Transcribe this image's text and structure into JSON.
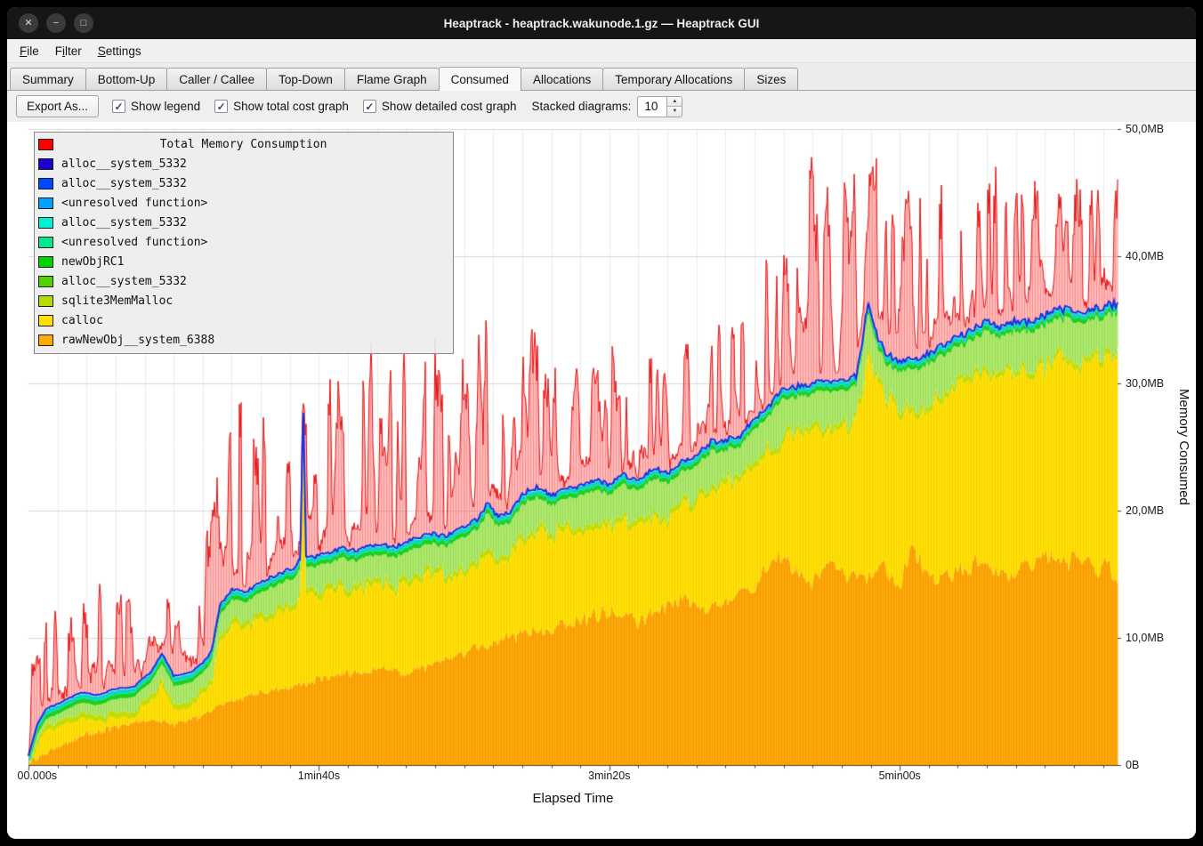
{
  "window": {
    "title": "Heaptrack - heaptrack.wakunode.1.gz — Heaptrack GUI",
    "controls": {
      "close": "✕",
      "minimize": "−",
      "maximize": "□"
    }
  },
  "menu": {
    "items": [
      {
        "label": "File",
        "mnemonic": "F"
      },
      {
        "label": "Filter",
        "mnemonic": "i"
      },
      {
        "label": "Settings",
        "mnemonic": "S"
      }
    ]
  },
  "tabs": [
    {
      "label": "Summary",
      "active": false
    },
    {
      "label": "Bottom-Up",
      "active": false
    },
    {
      "label": "Caller / Callee",
      "active": false
    },
    {
      "label": "Top-Down",
      "active": false
    },
    {
      "label": "Flame Graph",
      "active": false
    },
    {
      "label": "Consumed",
      "active": true
    },
    {
      "label": "Allocations",
      "active": false
    },
    {
      "label": "Temporary Allocations",
      "active": false
    },
    {
      "label": "Sizes",
      "active": false
    }
  ],
  "toolbar": {
    "export_label": "Export As...",
    "checkboxes": [
      {
        "label": "Show legend",
        "checked": true
      },
      {
        "label": "Show total cost graph",
        "checked": true
      },
      {
        "label": "Show detailed cost graph",
        "checked": true
      }
    ],
    "stacked_label": "Stacked diagrams:",
    "stacked_value": "10"
  },
  "icons": {
    "check": "✓",
    "spin_up": "▲",
    "spin_down": "▼"
  },
  "chart_data": {
    "type": "area",
    "stacked": true,
    "title": "Total Memory Consumption",
    "xlabel": "Elapsed Time",
    "ylabel": "Memory Consumed",
    "xlim": [
      0,
      375
    ],
    "ylim_mb": [
      0,
      50
    ],
    "x_ticks": [
      {
        "t": 0,
        "label": "00.000s"
      },
      {
        "t": 100,
        "label": "1min40s"
      },
      {
        "t": 200,
        "label": "3min20s"
      },
      {
        "t": 300,
        "label": "5min00s"
      }
    ],
    "y_ticks": [
      {
        "mb": 0,
        "label": "0B"
      },
      {
        "mb": 10,
        "label": "10,0MB"
      },
      {
        "mb": 20,
        "label": "20,0MB"
      },
      {
        "mb": 30,
        "label": "30,0MB"
      },
      {
        "mb": 40,
        "label": "40,0MB"
      },
      {
        "mb": 50,
        "label": "50,0MB"
      }
    ],
    "legend": [
      {
        "label": "Total Memory Consumption",
        "color": "#ff0000",
        "is_title": true
      },
      {
        "label": "alloc__system_5332",
        "color": "#1a00d2"
      },
      {
        "label": "alloc__system_5332",
        "color": "#0048ff"
      },
      {
        "label": "<unresolved function>",
        "color": "#00a2ff"
      },
      {
        "label": "alloc__system_5332",
        "color": "#00f0d2"
      },
      {
        "label": "<unresolved function>",
        "color": "#00e88a"
      },
      {
        "label": "newObjRC1",
        "color": "#00d400"
      },
      {
        "label": "alloc__system_5332",
        "color": "#52d200"
      },
      {
        "label": "sqlite3MemMalloc",
        "color": "#b4dc00"
      },
      {
        "label": "calloc",
        "color": "#ffe000"
      },
      {
        "label": "rawNewObj__system_6388",
        "color": "#ffaa00"
      }
    ],
    "band_colors": {
      "orange": "#ffa808",
      "yellow": "#ffdf05",
      "yellow_green": "#c6dc00",
      "pale_green": "#aee86e",
      "green": "#1ecf1e",
      "cyan": "#00d9c9",
      "blue": "#1c2fe0",
      "red": "#e51212",
      "red_fill": "rgba(255,45,45,0.33)"
    },
    "series_keyframes": {
      "solid_top_mb": [
        [
          0,
          0.7
        ],
        [
          3,
          3.2
        ],
        [
          6,
          4.4
        ],
        [
          12,
          5.0
        ],
        [
          18,
          5.7
        ],
        [
          24,
          5.5
        ],
        [
          30,
          6.0
        ],
        [
          36,
          6.1
        ],
        [
          42,
          7.3
        ],
        [
          46,
          8.8
        ],
        [
          50,
          7.0
        ],
        [
          56,
          7.3
        ],
        [
          60,
          8.0
        ],
        [
          63,
          8.9
        ],
        [
          66,
          12.6
        ],
        [
          70,
          13.8
        ],
        [
          75,
          13.6
        ],
        [
          80,
          14.4
        ],
        [
          86,
          15.0
        ],
        [
          92,
          15.6
        ],
        [
          93.6,
          16.2
        ],
        [
          94.6,
          28.5
        ],
        [
          95.6,
          16.2
        ],
        [
          102,
          16.6
        ],
        [
          108,
          17.0
        ],
        [
          114,
          16.9
        ],
        [
          120,
          17.4
        ],
        [
          126,
          17.1
        ],
        [
          132,
          17.8
        ],
        [
          138,
          18.2
        ],
        [
          144,
          18.0
        ],
        [
          150,
          18.8
        ],
        [
          155,
          19.4
        ],
        [
          158,
          20.6
        ],
        [
          161,
          19.6
        ],
        [
          166,
          19.9
        ],
        [
          170,
          21.3
        ],
        [
          175,
          21.9
        ],
        [
          180,
          21.2
        ],
        [
          185,
          21.6
        ],
        [
          190,
          21.9
        ],
        [
          195,
          22.4
        ],
        [
          200,
          22.1
        ],
        [
          205,
          22.8
        ],
        [
          210,
          22.4
        ],
        [
          215,
          23.3
        ],
        [
          220,
          23.0
        ],
        [
          225,
          23.8
        ],
        [
          230,
          24.3
        ],
        [
          235,
          25.4
        ],
        [
          240,
          25.6
        ],
        [
          245,
          25.9
        ],
        [
          250,
          27.2
        ],
        [
          255,
          28.3
        ],
        [
          260,
          29.6
        ],
        [
          265,
          29.8
        ],
        [
          270,
          30.0
        ],
        [
          275,
          30.3
        ],
        [
          280,
          30.1
        ],
        [
          285,
          30.6
        ],
        [
          287,
          33.0
        ],
        [
          289,
          36.4
        ],
        [
          291,
          35.0
        ],
        [
          293,
          33.2
        ],
        [
          296,
          32.2
        ],
        [
          300,
          31.7
        ],
        [
          305,
          31.9
        ],
        [
          310,
          32.4
        ],
        [
          315,
          33.0
        ],
        [
          320,
          33.6
        ],
        [
          325,
          34.2
        ],
        [
          330,
          34.9
        ],
        [
          335,
          34.4
        ],
        [
          340,
          35.0
        ],
        [
          345,
          34.8
        ],
        [
          350,
          35.3
        ],
        [
          355,
          35.9
        ],
        [
          360,
          35.5
        ],
        [
          365,
          35.8
        ],
        [
          370,
          36.0
        ],
        [
          375,
          36.3
        ]
      ],
      "orange_top_mb": [
        [
          0,
          0.2
        ],
        [
          6,
          0.9
        ],
        [
          12,
          1.6
        ],
        [
          20,
          2.4
        ],
        [
          28,
          2.9
        ],
        [
          36,
          3.3
        ],
        [
          44,
          3.6
        ],
        [
          50,
          3.2
        ],
        [
          58,
          3.7
        ],
        [
          66,
          4.8
        ],
        [
          74,
          5.3
        ],
        [
          82,
          5.7
        ],
        [
          90,
          6.1
        ],
        [
          98,
          6.6
        ],
        [
          106,
          7.0
        ],
        [
          114,
          7.3
        ],
        [
          122,
          7.6
        ],
        [
          130,
          7.1
        ],
        [
          138,
          7.9
        ],
        [
          146,
          8.4
        ],
        [
          154,
          9.2
        ],
        [
          162,
          9.8
        ],
        [
          170,
          10.2
        ],
        [
          178,
          10.6
        ],
        [
          186,
          11.2
        ],
        [
          194,
          11.8
        ],
        [
          202,
          12.1
        ],
        [
          210,
          11.2
        ],
        [
          218,
          12.4
        ],
        [
          226,
          12.9
        ],
        [
          234,
          12.2
        ],
        [
          242,
          12.8
        ],
        [
          250,
          14.2
        ],
        [
          256,
          16.4
        ],
        [
          260,
          16.8
        ],
        [
          264,
          15.2
        ],
        [
          270,
          14.1
        ],
        [
          276,
          15.8
        ],
        [
          282,
          14.9
        ],
        [
          288,
          14.6
        ],
        [
          294,
          15.9
        ],
        [
          300,
          14.2
        ],
        [
          304,
          17.2
        ],
        [
          308,
          15.4
        ],
        [
          314,
          14.7
        ],
        [
          320,
          15.1
        ],
        [
          326,
          15.9
        ],
        [
          332,
          15.4
        ],
        [
          338,
          14.7
        ],
        [
          344,
          15.6
        ],
        [
          350,
          16.3
        ],
        [
          356,
          15.8
        ],
        [
          362,
          16.6
        ],
        [
          368,
          15.4
        ],
        [
          372,
          15.9
        ],
        [
          375,
          14.3
        ]
      ],
      "green_band_mb": [
        [
          0,
          0.4
        ],
        [
          20,
          0.9
        ],
        [
          40,
          1.1
        ],
        [
          60,
          1.3
        ],
        [
          80,
          1.7
        ],
        [
          100,
          1.9
        ],
        [
          120,
          2.1
        ],
        [
          140,
          2.0
        ],
        [
          160,
          2.3
        ],
        [
          180,
          2.1
        ],
        [
          200,
          2.3
        ],
        [
          220,
          2.5
        ],
        [
          240,
          2.3
        ],
        [
          260,
          2.7
        ],
        [
          280,
          2.5
        ],
        [
          300,
          2.7
        ],
        [
          320,
          2.9
        ],
        [
          340,
          2.7
        ],
        [
          360,
          2.9
        ],
        [
          375,
          2.7
        ]
      ],
      "red_peak_mb": [
        [
          0,
          7
        ],
        [
          8,
          12
        ],
        [
          14,
          10
        ],
        [
          21,
          17
        ],
        [
          27,
          11
        ],
        [
          34,
          13
        ],
        [
          40,
          11
        ],
        [
          47,
          13
        ],
        [
          54,
          11
        ],
        [
          60,
          16
        ],
        [
          66,
          22
        ],
        [
          70,
          26
        ],
        [
          75,
          28
        ],
        [
          78,
          33
        ],
        [
          82,
          24
        ],
        [
          88,
          23
        ],
        [
          94,
          29
        ],
        [
          98,
          23
        ],
        [
          104,
          30
        ],
        [
          110,
          27
        ],
        [
          116,
          33
        ],
        [
          122,
          28
        ],
        [
          128,
          31
        ],
        [
          134,
          30
        ],
        [
          140,
          31
        ],
        [
          146,
          28
        ],
        [
          152,
          31
        ],
        [
          157,
          35
        ],
        [
          162,
          29
        ],
        [
          168,
          30
        ],
        [
          174,
          33
        ],
        [
          180,
          29
        ],
        [
          186,
          31
        ],
        [
          192,
          29
        ],
        [
          198,
          32
        ],
        [
          204,
          33
        ],
        [
          210,
          34
        ],
        [
          216,
          30
        ],
        [
          222,
          33
        ],
        [
          228,
          32
        ],
        [
          234,
          34
        ],
        [
          240,
          33
        ],
        [
          245,
          36
        ],
        [
          250,
          37
        ],
        [
          255,
          39
        ],
        [
          260,
          43
        ],
        [
          265,
          45
        ],
        [
          270,
          46
        ],
        [
          275,
          44
        ],
        [
          280,
          46
        ],
        [
          285,
          45
        ],
        [
          288,
          47
        ],
        [
          292,
          47
        ],
        [
          296,
          43
        ],
        [
          300,
          41
        ],
        [
          304,
          44
        ],
        [
          308,
          45
        ],
        [
          312,
          42
        ],
        [
          316,
          45
        ],
        [
          320,
          43
        ],
        [
          324,
          46
        ],
        [
          328,
          44
        ],
        [
          332,
          45
        ],
        [
          336,
          44
        ],
        [
          340,
          45
        ],
        [
          344,
          43
        ],
        [
          348,
          45
        ],
        [
          352,
          44
        ],
        [
          356,
          46
        ],
        [
          360,
          44
        ],
        [
          364,
          45
        ],
        [
          368,
          44
        ],
        [
          372,
          46
        ],
        [
          375,
          45
        ]
      ]
    }
  }
}
